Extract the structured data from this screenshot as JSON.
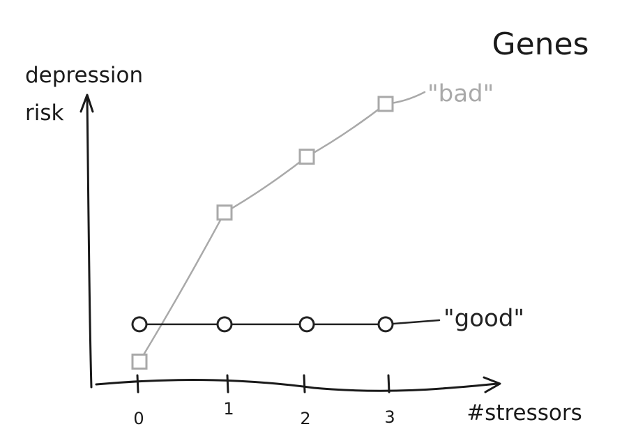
{
  "chart_data": {
    "type": "line",
    "title": "Genes",
    "xlabel": "#stressors",
    "ylabel": "depression risk",
    "ylabel_lines": [
      "depression",
      "risk"
    ],
    "categories": [
      "0",
      "1",
      "2",
      "3"
    ],
    "x": [
      0,
      1,
      2,
      3
    ],
    "ylim": [
      0,
      10
    ],
    "grid": false,
    "series": [
      {
        "name": "\"bad\"",
        "values": [
          0.6,
          5.4,
          7.2,
          8.9
        ],
        "color": "#a9a9a9",
        "marker": "square"
      },
      {
        "name": "\"good\"",
        "values": [
          1.8,
          1.8,
          1.8,
          1.8
        ],
        "color": "#222222",
        "marker": "circle"
      }
    ]
  }
}
